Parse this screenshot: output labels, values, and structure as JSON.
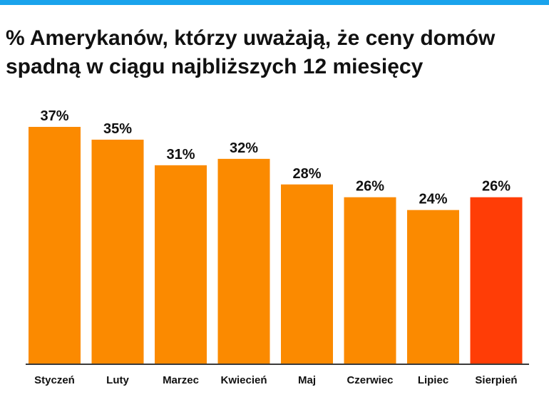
{
  "title": {
    "line1": "% Amerykanów, którzy uważają, że ceny domów",
    "line2": "spadną w ciągu najbliższych 12 miesięcy"
  },
  "chart_data": {
    "type": "bar",
    "categories": [
      "Styczeń",
      "Luty",
      "Marzec",
      "Kwiecień",
      "Maj",
      "Czerwiec",
      "Lipiec",
      "Sierpień"
    ],
    "values": [
      37,
      35,
      31,
      32,
      28,
      26,
      24,
      26
    ],
    "value_labels": [
      "37%",
      "35%",
      "31%",
      "32%",
      "28%",
      "26%",
      "24%",
      "26%"
    ],
    "colors": [
      "#fb8a00",
      "#fb8a00",
      "#fb8a00",
      "#fb8a00",
      "#fb8a00",
      "#fb8a00",
      "#fb8a00",
      "#ff3d06"
    ],
    "axis_color": "#3a3a3a",
    "ylim": [
      0,
      37
    ],
    "grid": false,
    "legend": "none"
  }
}
